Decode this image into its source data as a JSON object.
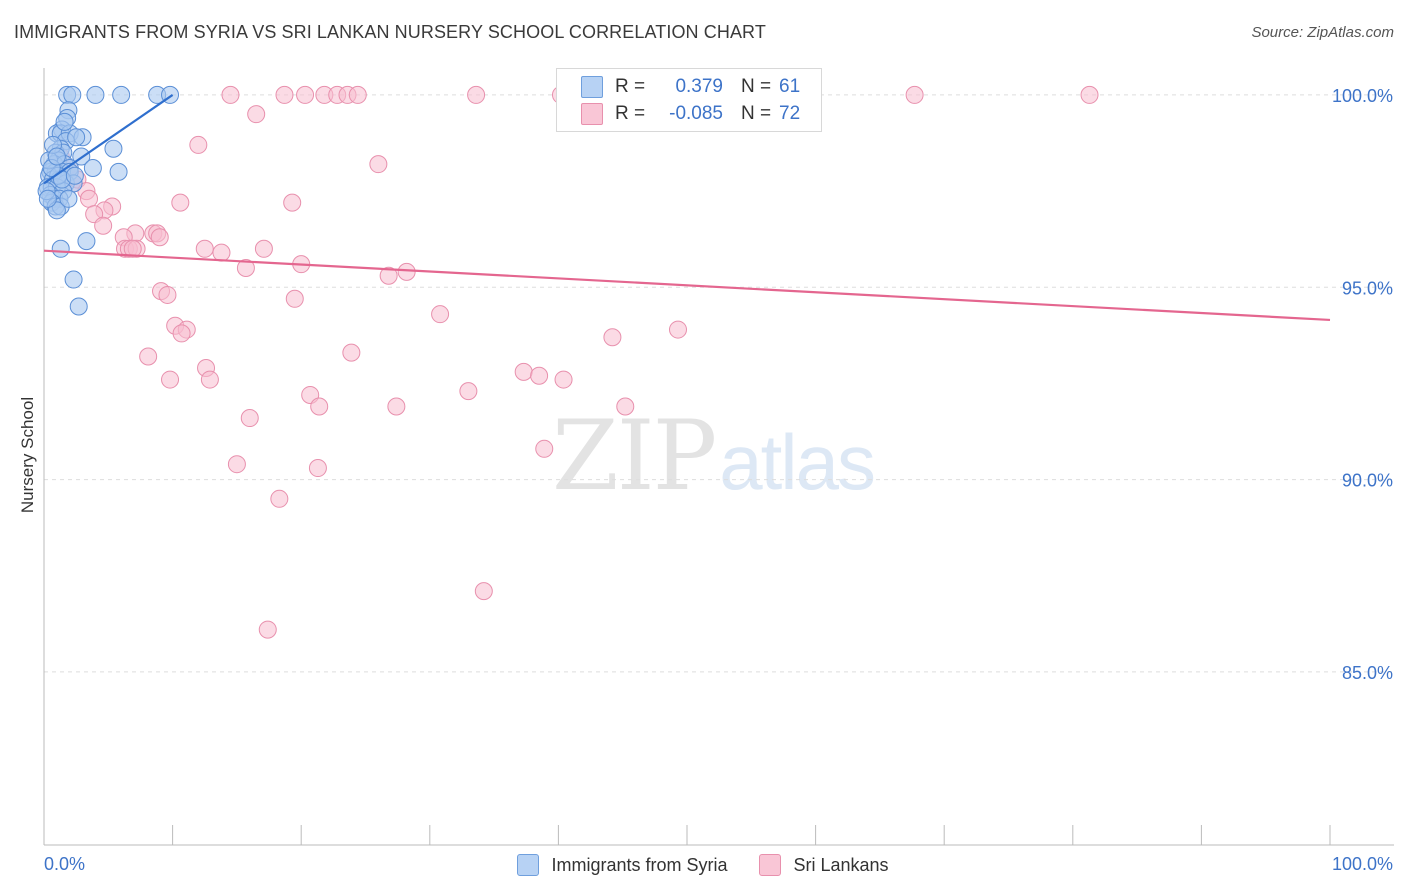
{
  "header": {
    "title": "IMMIGRANTS FROM SYRIA VS SRI LANKAN NURSERY SCHOOL CORRELATION CHART",
    "source": "Source: ZipAtlas.com"
  },
  "watermark": {
    "zip": "ZIP",
    "atlas": "atlas"
  },
  "stats": {
    "r_label": "R =",
    "n_label": "N =",
    "syria": {
      "r": "0.379",
      "n": "61"
    },
    "srilanka": {
      "r": "-0.085",
      "n": "72"
    }
  },
  "legend": {
    "syria": "Immigrants from Syria",
    "srilanka": "Sri Lankans"
  },
  "chart_data": {
    "type": "scatter",
    "title": "IMMIGRANTS FROM SYRIA VS SRI LANKAN NURSERY SCHOOL CORRELATION CHART",
    "xlabel": "",
    "ylabel": "Nursery School",
    "xlim": [
      0,
      100
    ],
    "ylim": [
      80.5,
      100.7
    ],
    "x_tick_labels": [
      "0.0%",
      "100.0%"
    ],
    "y_ticks": [
      85,
      90,
      95,
      100
    ],
    "y_tick_labels": [
      "85.0%",
      "90.0%",
      "95.0%",
      "100.0%"
    ],
    "colors": {
      "syria_fill": "#a9c8f0",
      "syria_stroke": "#5b8fd6",
      "syria_line": "#2f6fce",
      "srilanka_fill": "#f7bdd0",
      "srilanka_stroke": "#e890ad",
      "srilanka_line": "#e4668f",
      "tick_label": "#3d73c8"
    },
    "series": [
      {
        "name": "Immigrants from Syria",
        "points": [
          [
            1.8,
            100.0
          ],
          [
            2.2,
            100.0
          ],
          [
            4.0,
            100.0
          ],
          [
            6.0,
            100.0
          ],
          [
            8.8,
            100.0
          ],
          [
            9.8,
            100.0
          ],
          [
            1.9,
            99.6
          ],
          [
            1.8,
            99.4
          ],
          [
            1.4,
            99.1
          ],
          [
            1.0,
            99.0
          ],
          [
            1.3,
            99.0
          ],
          [
            2.0,
            99.0
          ],
          [
            3.0,
            98.9
          ],
          [
            1.7,
            98.8
          ],
          [
            1.3,
            98.6
          ],
          [
            0.9,
            98.5
          ],
          [
            1.5,
            98.5
          ],
          [
            2.9,
            98.4
          ],
          [
            5.4,
            98.6
          ],
          [
            1.1,
            98.3
          ],
          [
            0.8,
            98.2
          ],
          [
            1.6,
            98.2
          ],
          [
            2.0,
            98.1
          ],
          [
            3.8,
            98.1
          ],
          [
            5.8,
            98.0
          ],
          [
            0.5,
            98.0
          ],
          [
            0.9,
            98.0
          ],
          [
            1.4,
            98.0
          ],
          [
            2.0,
            98.0
          ],
          [
            0.4,
            97.9
          ],
          [
            0.7,
            97.8
          ],
          [
            1.2,
            97.8
          ],
          [
            1.7,
            97.7
          ],
          [
            2.3,
            97.7
          ],
          [
            0.3,
            97.6
          ],
          [
            0.6,
            97.6
          ],
          [
            1.0,
            97.6
          ],
          [
            1.5,
            97.5
          ],
          [
            0.5,
            97.4
          ],
          [
            0.8,
            97.3
          ],
          [
            1.2,
            97.3
          ],
          [
            0.6,
            97.2
          ],
          [
            0.9,
            97.1
          ],
          [
            1.3,
            97.1
          ],
          [
            1.0,
            97.0
          ],
          [
            3.3,
            96.2
          ],
          [
            1.3,
            96.0
          ],
          [
            2.3,
            95.2
          ],
          [
            2.7,
            94.5
          ],
          [
            0.2,
            97.5
          ],
          [
            0.3,
            97.3
          ],
          [
            0.4,
            98.3
          ],
          [
            1.1,
            97.9
          ],
          [
            1.6,
            99.3
          ],
          [
            2.5,
            98.9
          ],
          [
            0.7,
            98.7
          ],
          [
            1.9,
            97.3
          ],
          [
            1.4,
            97.8
          ],
          [
            2.4,
            97.9
          ],
          [
            0.6,
            98.1
          ],
          [
            1.0,
            98.4
          ]
        ],
        "trend": {
          "x": [
            0.0,
            10.0
          ],
          "y": [
            97.7,
            100.0
          ]
        }
      },
      {
        "name": "Sri Lankans",
        "points": [
          [
            14.5,
            100.0
          ],
          [
            18.7,
            100.0
          ],
          [
            20.3,
            100.0
          ],
          [
            21.8,
            100.0
          ],
          [
            22.8,
            100.0
          ],
          [
            23.6,
            100.0
          ],
          [
            24.4,
            100.0
          ],
          [
            33.6,
            100.0
          ],
          [
            67.7,
            100.0
          ],
          [
            81.3,
            100.0
          ],
          [
            16.5,
            99.5
          ],
          [
            12.0,
            98.7
          ],
          [
            26.0,
            98.2
          ],
          [
            1.3,
            98.4
          ],
          [
            1.7,
            98.0
          ],
          [
            2.3,
            97.7
          ],
          [
            2.6,
            97.8
          ],
          [
            3.3,
            97.5
          ],
          [
            3.5,
            97.3
          ],
          [
            5.3,
            97.1
          ],
          [
            10.6,
            97.2
          ],
          [
            19.3,
            97.2
          ],
          [
            4.7,
            97.0
          ],
          [
            3.9,
            96.9
          ],
          [
            4.6,
            96.6
          ],
          [
            7.1,
            96.4
          ],
          [
            8.5,
            96.4
          ],
          [
            8.8,
            96.4
          ],
          [
            6.2,
            96.3
          ],
          [
            9.0,
            96.3
          ],
          [
            6.3,
            96.0
          ],
          [
            6.6,
            96.0
          ],
          [
            7.2,
            96.0
          ],
          [
            12.5,
            96.0
          ],
          [
            13.8,
            95.9
          ],
          [
            17.1,
            96.0
          ],
          [
            15.7,
            95.5
          ],
          [
            20.0,
            95.6
          ],
          [
            26.8,
            95.3
          ],
          [
            28.2,
            95.4
          ],
          [
            9.1,
            94.9
          ],
          [
            9.6,
            94.8
          ],
          [
            19.5,
            94.7
          ],
          [
            30.8,
            94.3
          ],
          [
            10.2,
            94.0
          ],
          [
            11.1,
            93.9
          ],
          [
            10.7,
            93.8
          ],
          [
            44.2,
            93.7
          ],
          [
            8.1,
            93.2
          ],
          [
            23.9,
            93.3
          ],
          [
            12.6,
            92.9
          ],
          [
            9.8,
            92.6
          ],
          [
            12.9,
            92.6
          ],
          [
            37.3,
            92.8
          ],
          [
            38.5,
            92.7
          ],
          [
            40.4,
            92.6
          ],
          [
            20.7,
            92.2
          ],
          [
            33.0,
            92.3
          ],
          [
            21.4,
            91.9
          ],
          [
            27.4,
            91.9
          ],
          [
            45.2,
            91.9
          ],
          [
            16.0,
            91.6
          ],
          [
            38.9,
            90.8
          ],
          [
            15.0,
            90.4
          ],
          [
            21.3,
            90.3
          ],
          [
            18.3,
            89.5
          ],
          [
            34.2,
            87.1
          ],
          [
            17.4,
            86.1
          ],
          [
            2.0,
            98.1
          ],
          [
            6.9,
            96.0
          ],
          [
            40.2,
            100.0
          ],
          [
            49.3,
            93.9
          ]
        ],
        "trend": {
          "x": [
            0.0,
            100.0
          ],
          "y": [
            95.95,
            94.15
          ]
        }
      }
    ]
  }
}
